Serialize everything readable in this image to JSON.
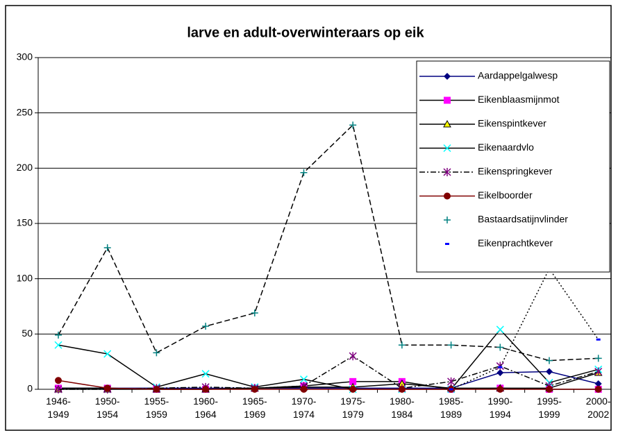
{
  "chart_data": {
    "type": "line",
    "title": "larve en adult-overwinteraars op eik",
    "categories": [
      "1946-1949",
      "1950-1954",
      "1955-1959",
      "1960-1964",
      "1965-1969",
      "1970-1974",
      "1975-1979",
      "1980-1984",
      "1985-1989",
      "1990-1994",
      "1995-1999",
      "2000-2002"
    ],
    "ylim": [
      0,
      300
    ],
    "yticks": [
      0,
      50,
      100,
      150,
      200,
      250,
      300
    ],
    "grid": true,
    "legend": "top-right",
    "series": [
      {
        "name": "Aardappelgalwesp",
        "color": "#000080",
        "marker": "diamond",
        "line_style": "solid",
        "values": [
          1,
          1,
          1,
          1,
          1,
          1,
          1,
          1,
          1,
          15,
          16,
          5
        ]
      },
      {
        "name": "Eikenblaasmijnmot",
        "color": "#ff00ff",
        "marker": "square",
        "line_style": "solid",
        "values": [
          1,
          1,
          0,
          0,
          1,
          3,
          7,
          7,
          0,
          1,
          0,
          0
        ]
      },
      {
        "name": "Eikenspintkever",
        "color": "#ffff00",
        "marker": "triangle",
        "line_style": "solid",
        "values": [
          0,
          0,
          0,
          0,
          1,
          2,
          2,
          5,
          1,
          1,
          1,
          15
        ]
      },
      {
        "name": "Eikenaardvlo",
        "color": "#00ffff",
        "marker": "x",
        "line_style": "solid",
        "values": [
          40,
          32,
          2,
          14,
          2,
          9,
          0,
          0,
          0,
          54,
          6,
          18
        ]
      },
      {
        "name": "Eikenspringkever",
        "color": "#800080",
        "marker": "star",
        "line_style": "dashdot",
        "values": [
          0,
          0,
          1,
          2,
          1,
          3,
          30,
          1,
          7,
          21,
          3,
          16
        ]
      },
      {
        "name": "Eikelboorder",
        "color": "#800000",
        "marker": "circle",
        "line_style": "solid",
        "values": [
          8,
          1,
          0,
          0,
          0,
          0,
          0,
          0,
          0,
          0,
          0,
          0
        ]
      },
      {
        "name": "Bastaardsatijnvlinder",
        "color": "#008080",
        "marker": "plus",
        "line_style": "dashed",
        "values": [
          49,
          128,
          33,
          57,
          69,
          196,
          239,
          40,
          40,
          38,
          26,
          28
        ]
      },
      {
        "name": "Eikenprachtkever",
        "color": "#0000ff",
        "marker": "dash",
        "line_style": "dotted",
        "values": [
          null,
          null,
          null,
          null,
          null,
          null,
          null,
          null,
          0,
          20,
          109,
          45
        ]
      }
    ]
  }
}
